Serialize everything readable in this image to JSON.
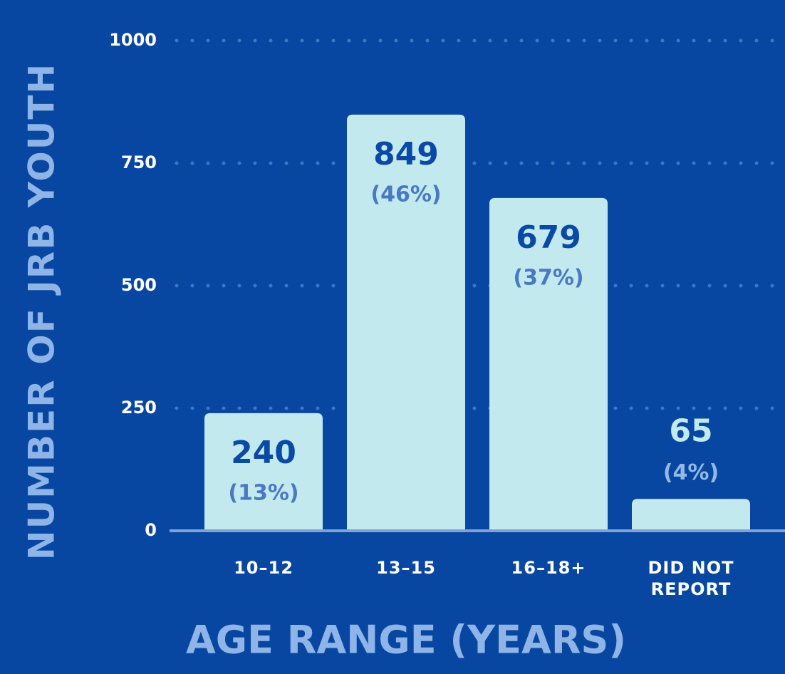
{
  "chart_data": {
    "type": "bar",
    "y_label": "NUMBER OF JRB YOUTH",
    "x_label": "AGE RANGE (YEARS)",
    "categories": [
      "10–12",
      "13–15",
      "16–18+",
      "DID NOT REPORT"
    ],
    "values": [
      240,
      849,
      679,
      65
    ],
    "percent_labels": [
      "(13%)",
      "(46%)",
      "(37%)",
      "(4%)"
    ],
    "color": "#c1e9ee",
    "ylim": [
      0,
      1000
    ],
    "yticks": [
      0,
      250,
      500,
      750,
      1000
    ],
    "grid": true
  }
}
